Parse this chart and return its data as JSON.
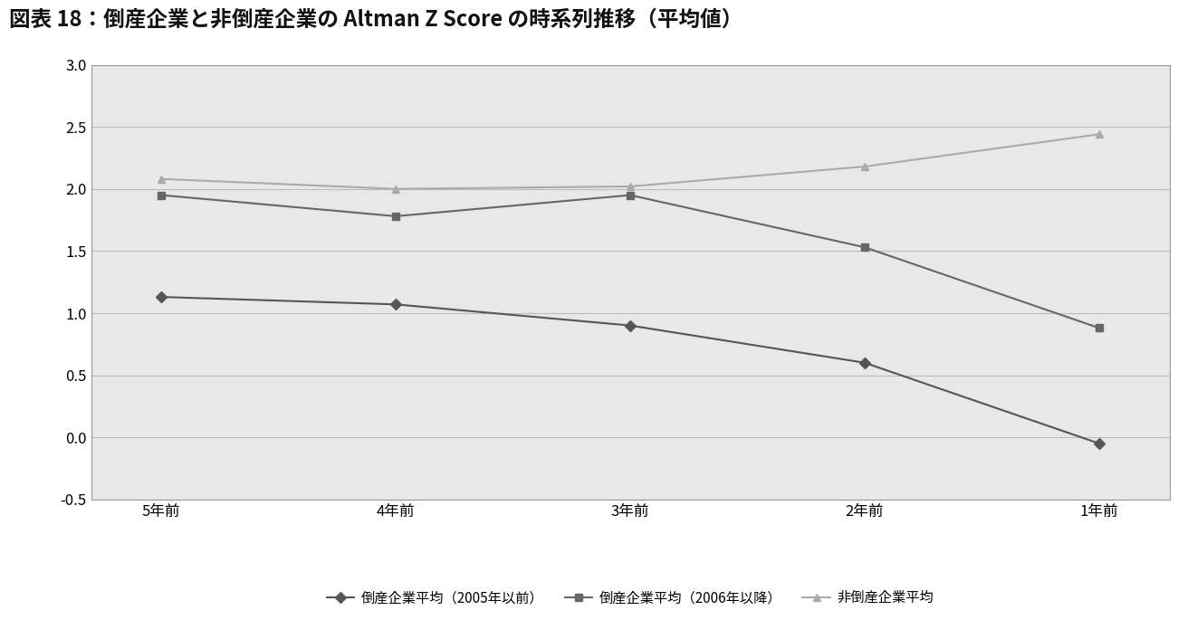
{
  "title": "図表 18：倒産企業と非倒産企業の Altman Z Score の時系列推移（平均値）",
  "x_labels": [
    "5年前",
    "4年前",
    "3年前",
    "2年前",
    "1年前"
  ],
  "series": [
    {
      "label": "倒産企業平均（2005年以前）",
      "values": [
        1.13,
        1.07,
        0.9,
        0.6,
        -0.05
      ],
      "color": "#555555",
      "marker": "D",
      "linestyle": "-",
      "linewidth": 1.5,
      "markersize": 6
    },
    {
      "label": "倒産企業平均（2006年以降）",
      "values": [
        1.95,
        1.78,
        1.95,
        1.53,
        0.88
      ],
      "color": "#666666",
      "marker": "s",
      "linestyle": "-",
      "linewidth": 1.5,
      "markersize": 6
    },
    {
      "label": "非倒産企業平均",
      "values": [
        2.08,
        2.0,
        2.02,
        2.18,
        2.44
      ],
      "color": "#aaaaaa",
      "marker": "^",
      "linestyle": "-",
      "linewidth": 1.5,
      "markersize": 6
    }
  ],
  "ylim": [
    -0.5,
    3.0
  ],
  "yticks": [
    -0.5,
    0.0,
    0.5,
    1.0,
    1.5,
    2.0,
    2.5,
    3.0
  ],
  "plot_bg": "#e8e8e8",
  "outer_bg": "#ffffff",
  "title_fontsize": 17,
  "tick_fontsize": 12,
  "legend_fontsize": 11,
  "grid_color": "#bbbbbb",
  "spine_color": "#888888",
  "border_color": "#999999"
}
